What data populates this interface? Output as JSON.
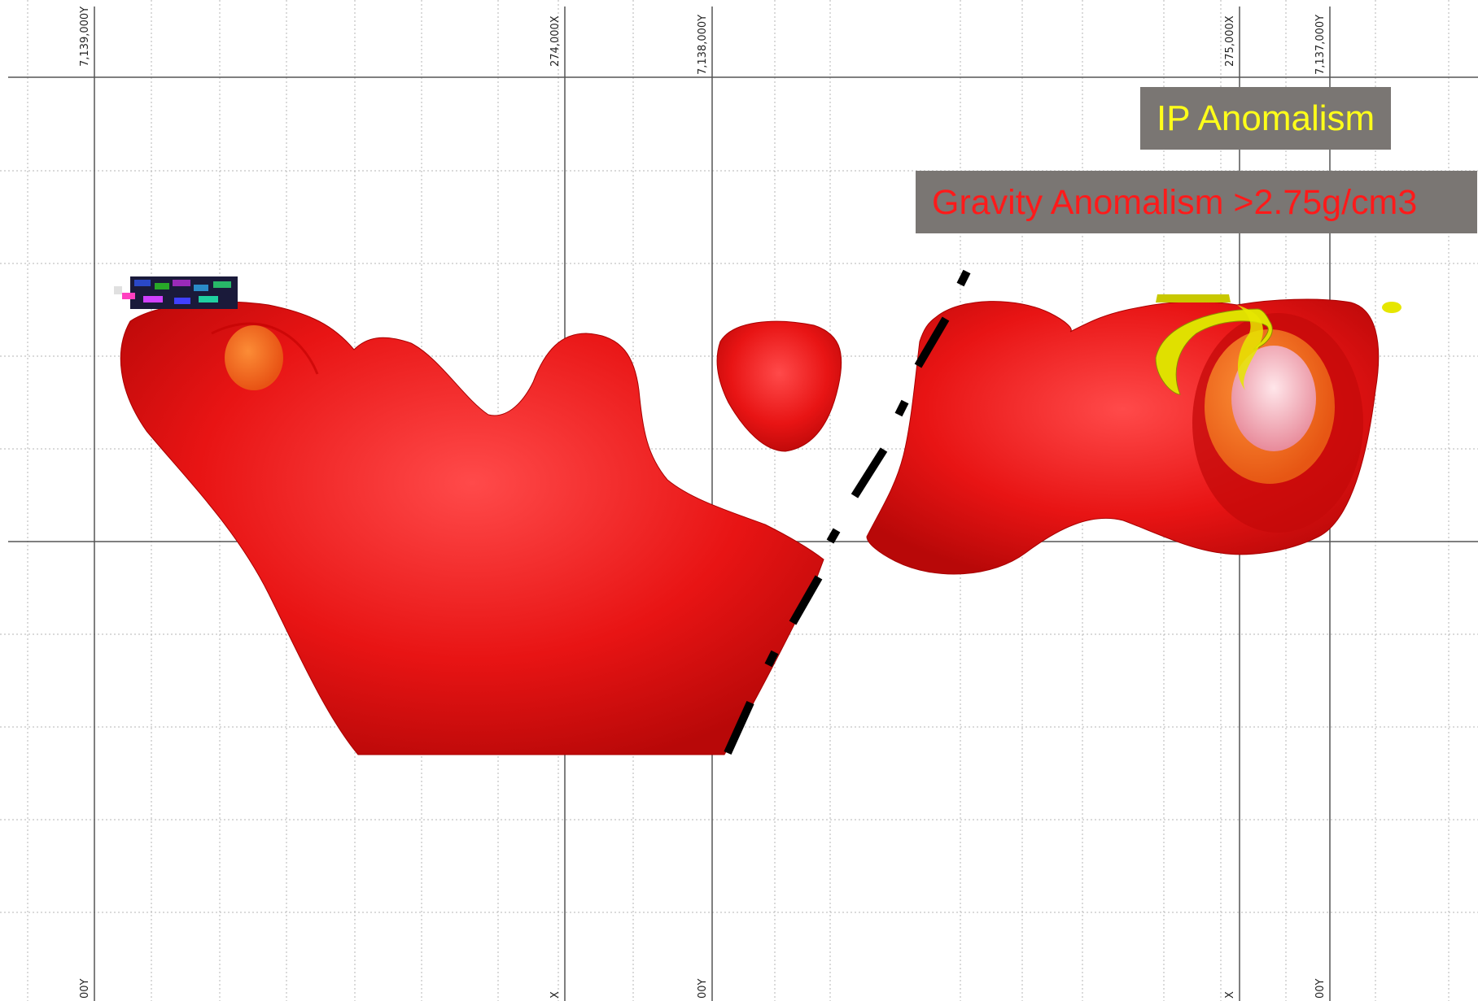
{
  "grid_labels": {
    "top": [
      "7,139,000Y",
      "274,000X",
      "7,138,000Y",
      "275,000X",
      "7,137,000Y"
    ],
    "bottom": [
      "00Y",
      "X",
      "00Y",
      "X",
      "00Y"
    ]
  },
  "legend": {
    "ip_label": "IP Anomalism",
    "gravity_label": "Gravity Anomalism >2.75g/cm3"
  },
  "colors": {
    "gravity_body": "#e81414",
    "ip_body": "#e6e600",
    "fault_line": "#000000",
    "legend_bg": "#7a7673"
  }
}
